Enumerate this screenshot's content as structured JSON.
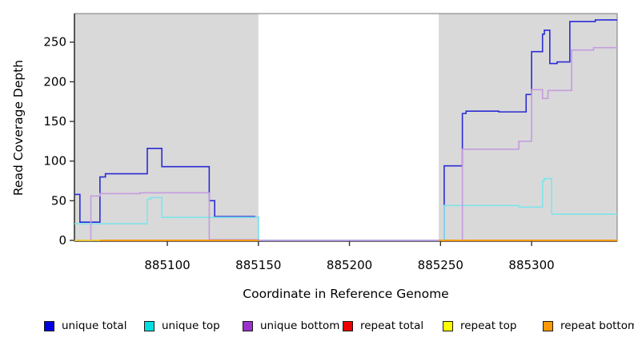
{
  "figure_title": "",
  "axes": {
    "x_label": "Coordinate in Reference Genome",
    "y_label": "Read Coverage Depth"
  },
  "colors": {
    "plot_background": "#ffffff",
    "shaded_band": "#d9d9d9",
    "axis_line": "#333333",
    "frame_line": "#777777",
    "unique_total": "#2b2bd5",
    "unique_top": "#7fe4ec",
    "unique_bottom": "#c49be0",
    "repeat_total": "#dd1111",
    "repeat_top": "#f5ee33",
    "repeat_bottom": "#ff9900"
  },
  "legend": {
    "items": [
      {
        "label": "unique total",
        "swatch_color": "#0000e0"
      },
      {
        "label": "unique top",
        "swatch_color": "#00e0e0"
      },
      {
        "label": "unique bottom",
        "swatch_color": "#9933cc"
      },
      {
        "label": "repeat total",
        "swatch_color": "#ee0000"
      },
      {
        "label": "repeat top",
        "swatch_color": "#ffff00"
      },
      {
        "label": "repeat bottom",
        "swatch_color": "#ff9900"
      }
    ]
  },
  "chart_data": {
    "type": "line",
    "mode": "step-after",
    "title": "",
    "xlabel": "Coordinate in Reference Genome",
    "ylabel": "Read Coverage Depth",
    "xlim": [
      885049,
      885347
    ],
    "ylim": [
      0,
      286
    ],
    "x_ticks": [
      885100,
      885150,
      885200,
      885250,
      885300
    ],
    "y_ticks": [
      0,
      50,
      100,
      150,
      200,
      250
    ],
    "grid": false,
    "legend_position": "bottom",
    "shaded_regions": [
      [
        885049,
        885150
      ],
      [
        885249,
        885347
      ]
    ],
    "series": [
      {
        "name": "unique total",
        "color_key": "unique_total",
        "segments": [
          [
            [
              885049,
              58
            ],
            [
              885052,
              23
            ],
            [
              885063,
              80
            ],
            [
              885066,
              84
            ],
            [
              885089,
              116
            ],
            [
              885097,
              93
            ],
            [
              885123,
              50
            ],
            [
              885126,
              30
            ],
            [
              885148,
              29
            ],
            [
              885150,
              0
            ],
            [
              885252,
              94
            ],
            [
              885262,
              160
            ],
            [
              885264,
              163
            ],
            [
              885282,
              162
            ],
            [
              885297,
              184
            ],
            [
              885300,
              238
            ],
            [
              885306,
              260
            ],
            [
              885307,
              265
            ],
            [
              885310,
              223
            ],
            [
              885314,
              225
            ],
            [
              885321,
              276
            ],
            [
              885335,
              278
            ],
            [
              885347,
              278
            ]
          ]
        ]
      },
      {
        "name": "unique top",
        "color_key": "unique_top",
        "segments": [
          [
            [
              885049,
              21
            ],
            [
              885089,
              52
            ],
            [
              885091,
              54
            ],
            [
              885097,
              29
            ],
            [
              885150,
              0
            ],
            [
              885252,
              44
            ],
            [
              885293,
              42
            ],
            [
              885306,
              75
            ],
            [
              885307,
              78
            ],
            [
              885311,
              33
            ],
            [
              885347,
              33
            ]
          ]
        ]
      },
      {
        "name": "unique bottom",
        "color_key": "unique_bottom",
        "segments": [
          [
            [
              885049,
              0
            ],
            [
              885058,
              56
            ],
            [
              885063,
              59
            ],
            [
              885085,
              60
            ],
            [
              885123,
              1
            ],
            [
              885150,
              0
            ],
            [
              885262,
              115
            ],
            [
              885293,
              125
            ],
            [
              885300,
              190
            ],
            [
              885306,
              179
            ],
            [
              885309,
              189
            ],
            [
              885322,
              240
            ],
            [
              885334,
              243
            ],
            [
              885347,
              243
            ]
          ]
        ]
      },
      {
        "name": "repeat total",
        "color_key": "repeat_total",
        "segments": [
          [
            [
              885049,
              0
            ],
            [
              885150,
              0
            ]
          ],
          [
            [
              885249,
              0
            ],
            [
              885347,
              0
            ]
          ]
        ]
      },
      {
        "name": "repeat top",
        "color_key": "repeat_top",
        "segments": [
          [
            [
              885049,
              0
            ],
            [
              885150,
              0
            ]
          ],
          [
            [
              885249,
              0
            ],
            [
              885347,
              0
            ]
          ]
        ]
      },
      {
        "name": "repeat bottom",
        "color_key": "repeat_bottom",
        "segments": [
          [
            [
              885063,
              0
            ],
            [
              885150,
              0
            ]
          ],
          [
            [
              885249,
              0
            ],
            [
              885347,
              0
            ]
          ]
        ]
      }
    ]
  }
}
